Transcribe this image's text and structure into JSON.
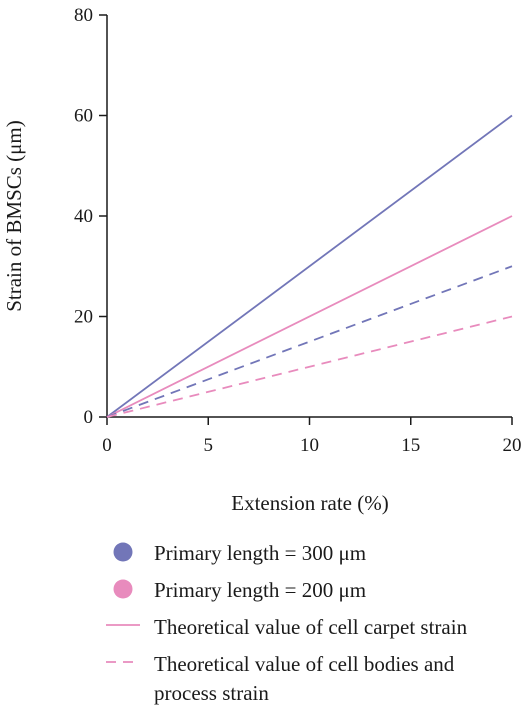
{
  "chart_data": {
    "type": "line",
    "title": "",
    "xlabel": "Extension rate (%)",
    "ylabel": "Strain of BMSCs (μm)",
    "xlim": [
      0,
      20
    ],
    "ylim": [
      0,
      80
    ],
    "xticks": [
      0,
      5,
      10,
      15,
      20
    ],
    "yticks": [
      0,
      20,
      40,
      60,
      80
    ],
    "grid": false,
    "legend_position": "bottom",
    "series": [
      {
        "group": "300",
        "style": "solid",
        "color": "#7276b8",
        "x": [
          0,
          20
        ],
        "y": [
          0,
          60
        ]
      },
      {
        "group": "200",
        "style": "solid",
        "color": "#e88bbd",
        "x": [
          0,
          20
        ],
        "y": [
          0,
          40
        ]
      },
      {
        "group": "300",
        "style": "dashed",
        "color": "#7276b8",
        "x": [
          0,
          20
        ],
        "y": [
          0,
          30
        ]
      },
      {
        "group": "200",
        "style": "dashed",
        "color": "#e88bbd",
        "x": [
          0,
          20
        ],
        "y": [
          0,
          20
        ]
      }
    ],
    "legend": [
      {
        "marker": "circle",
        "color": "#7276b8",
        "lines": [
          "Primary length = 300 μm"
        ]
      },
      {
        "marker": "circle",
        "color": "#e88bbd",
        "lines": [
          "Primary length = 200 μm"
        ]
      },
      {
        "marker": "solid-line",
        "color": "#e88bbd",
        "lines": [
          "Theoretical value of cell carpet strain"
        ]
      },
      {
        "marker": "dashed-line",
        "color": "#e88bbd",
        "lines": [
          "Theoretical value of cell bodies and",
          "process strain"
        ]
      }
    ]
  }
}
